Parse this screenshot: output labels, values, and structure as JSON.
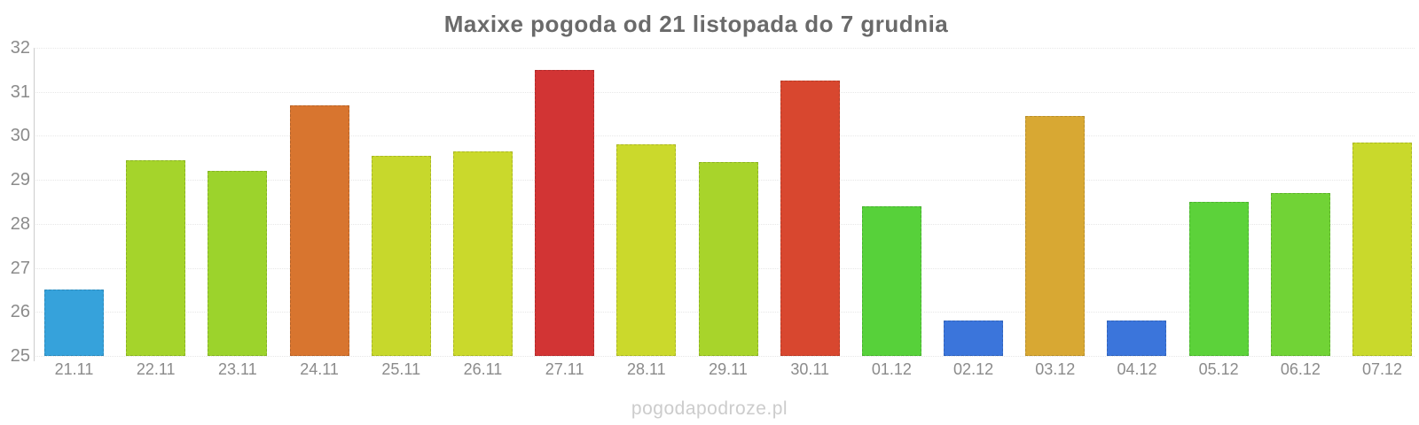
{
  "chart_data": {
    "type": "bar",
    "title": "Maxixe pogoda od 21 listopada do 7 grudnia",
    "xlabel": "",
    "ylabel": "",
    "ylim": [
      25,
      32
    ],
    "yticks": [
      25,
      26,
      27,
      28,
      29,
      30,
      31,
      32
    ],
    "grid": true,
    "legend": false,
    "categories": [
      "21.11",
      "22.11",
      "23.11",
      "24.11",
      "25.11",
      "26.11",
      "27.11",
      "28.11",
      "29.11",
      "30.11",
      "01.12",
      "02.12",
      "03.12",
      "04.12",
      "05.12",
      "06.12",
      "07.12"
    ],
    "values": [
      26.5,
      29.45,
      29.2,
      30.7,
      29.55,
      29.65,
      31.5,
      29.8,
      29.4,
      31.25,
      28.4,
      25.8,
      30.45,
      25.8,
      28.5,
      28.7,
      29.85
    ],
    "bar_colors": [
      "#36A2DB",
      "#A5D42B",
      "#9CD32C",
      "#D8752F",
      "#C7D82C",
      "#CAD92C",
      "#D23434",
      "#CBD92C",
      "#A8D42B",
      "#D8472F",
      "#57D13A",
      "#3B75DB",
      "#D8A833",
      "#3B75DB",
      "#5CD23A",
      "#71D336",
      "#C9D92C"
    ],
    "title_color": "#6a6a6a",
    "axis_label_color": "#8b8b8b",
    "gridline_color": "#e7e7e7",
    "watermark": "pogodapodroze.pl",
    "watermark_color": "#cccccc"
  }
}
